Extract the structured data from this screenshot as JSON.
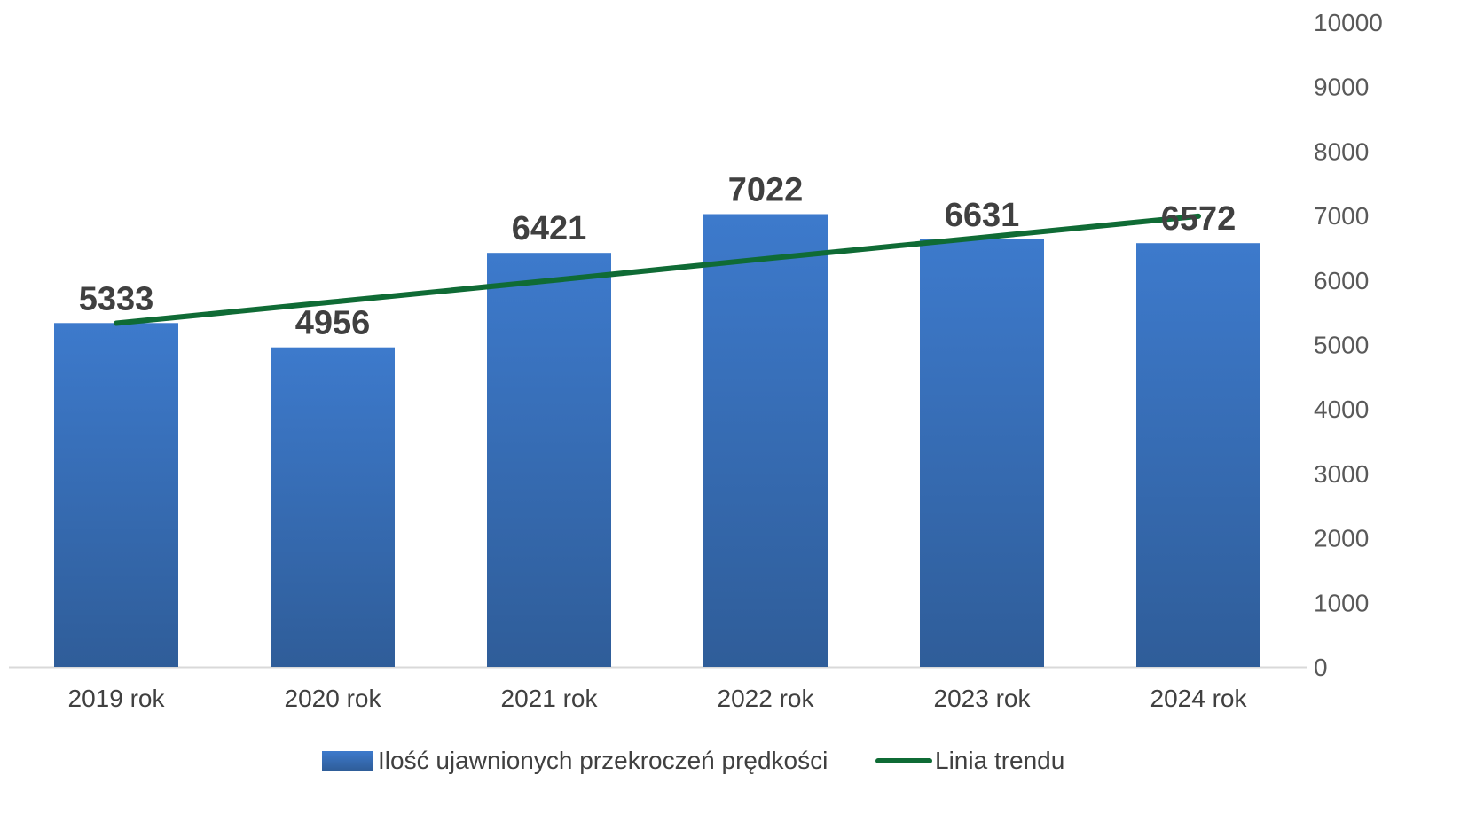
{
  "chart_data": {
    "type": "bar",
    "categories": [
      "2019 rok",
      "2020 rok",
      "2021 rok",
      "2022 rok",
      "2023 rok",
      "2024 rok"
    ],
    "series": [
      {
        "name": "Ilość ujawnionych przekroczeń prędkości",
        "type": "bar",
        "values": [
          5333,
          4956,
          6421,
          7022,
          6631,
          6572
        ],
        "color_top": "#3d7acc",
        "color_bottom": "#2f5d99"
      },
      {
        "name": "Linia trendu",
        "type": "line",
        "values": [
          5330,
          5660,
          5990,
          6330,
          6660,
          6990
        ],
        "color": "#0f6b35"
      }
    ],
    "ylim": [
      0,
      10000
    ],
    "yticks": [
      0,
      1000,
      2000,
      3000,
      4000,
      5000,
      6000,
      7000,
      8000,
      9000,
      10000
    ],
    "y_axis_position": "right",
    "grid": false,
    "legend_position": "bottom",
    "title": "",
    "xlabel": "",
    "ylabel": ""
  }
}
